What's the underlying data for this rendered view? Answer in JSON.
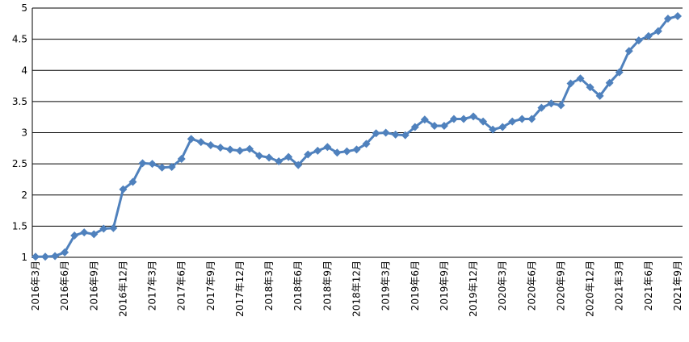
{
  "chart_data": {
    "type": "line",
    "categories": [
      "2016年3月",
      null,
      null,
      "2016年6月",
      null,
      null,
      "2016年9月",
      null,
      null,
      "2016年12月",
      null,
      null,
      "2017年3月",
      null,
      null,
      "2017年6月",
      null,
      null,
      "2017年9月",
      null,
      null,
      "2017年12月",
      null,
      null,
      "2018年3月",
      null,
      null,
      "2018年6月",
      null,
      null,
      "2018年9月",
      null,
      null,
      "2018年12月",
      null,
      null,
      "2019年3月",
      null,
      null,
      "2019年6月",
      null,
      null,
      "2019年9月",
      null,
      null,
      "2019年12月",
      null,
      null,
      "2020年3月",
      null,
      null,
      "2020年6月",
      null,
      null,
      "2020年9月",
      null,
      null,
      "2020年12月",
      null,
      null,
      "2021年3月",
      null,
      null,
      "2021年6月",
      null,
      null,
      "2021年9月"
    ],
    "values": [
      1.01,
      1.01,
      1.02,
      1.08,
      1.35,
      1.4,
      1.37,
      1.46,
      1.47,
      2.09,
      2.21,
      2.51,
      2.5,
      2.44,
      2.45,
      2.58,
      2.9,
      2.85,
      2.8,
      2.76,
      2.73,
      2.71,
      2.74,
      2.63,
      2.6,
      2.54,
      2.61,
      2.48,
      2.65,
      2.71,
      2.77,
      2.68,
      2.7,
      2.73,
      2.82,
      2.99,
      3.0,
      2.97,
      2.96,
      3.09,
      3.21,
      3.11,
      3.11,
      3.22,
      3.22,
      3.26,
      3.18,
      3.05,
      3.09,
      3.18,
      3.22,
      3.22,
      3.4,
      3.47,
      3.44,
      3.79,
      3.87,
      3.73,
      3.59,
      3.8,
      3.97,
      4.31,
      4.48,
      4.55,
      4.63,
      4.83,
      4.87
    ],
    "color": "#4f81bd",
    "ylim": [
      1,
      5
    ],
    "yticks": [
      1,
      1.5,
      2,
      2.5,
      3,
      3.5,
      4,
      4.5,
      5
    ],
    "grid": true
  }
}
